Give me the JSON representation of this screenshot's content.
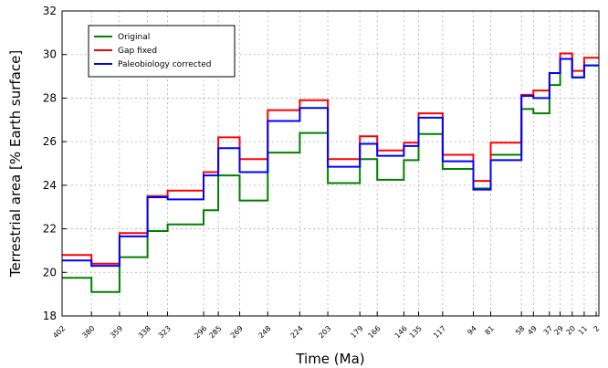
{
  "chart_data": {
    "type": "line",
    "step": true,
    "xlabel": "Time (Ma)",
    "ylabel": "Terrestrial area [% Earth surface]",
    "xlim": [
      402,
      0
    ],
    "ylim": [
      18,
      32
    ],
    "yticks": [
      18,
      20,
      22,
      24,
      26,
      28,
      30,
      32
    ],
    "xticks": [
      402,
      380,
      359,
      338,
      323,
      296,
      285,
      269,
      248,
      224,
      203,
      179,
      166,
      146,
      135,
      117,
      94,
      81,
      58,
      49,
      37,
      29,
      20,
      11,
      2
    ],
    "grid": true,
    "legend_position": "top-left",
    "series": [
      {
        "name": "Original",
        "color": "#008000",
        "values": [
          19.75,
          19.1,
          20.7,
          21.9,
          22.2,
          22.85,
          24.45,
          23.3,
          25.5,
          26.4,
          24.1,
          25.2,
          24.25,
          25.15,
          26.35,
          24.75,
          23.85,
          25.4,
          27.5,
          27.3,
          28.6,
          29.8,
          28.95,
          29.5,
          29.5
        ]
      },
      {
        "name": "Gap fixed",
        "color": "#ff0000",
        "values": [
          20.8,
          20.4,
          21.8,
          23.5,
          23.75,
          24.6,
          26.2,
          25.2,
          27.45,
          27.9,
          25.2,
          26.25,
          25.6,
          25.95,
          27.3,
          25.4,
          24.2,
          25.95,
          28.15,
          28.35,
          29.15,
          30.05,
          29.25,
          29.85,
          29.85
        ]
      },
      {
        "name": "Paleobiology corrected",
        "color": "#0000ff",
        "values": [
          20.55,
          20.3,
          21.65,
          23.45,
          23.35,
          24.45,
          25.7,
          24.6,
          26.95,
          27.55,
          24.85,
          25.9,
          25.35,
          25.8,
          27.1,
          25.1,
          23.8,
          25.15,
          28.1,
          28.0,
          29.15,
          29.8,
          28.95,
          29.5,
          29.5
        ]
      }
    ]
  }
}
